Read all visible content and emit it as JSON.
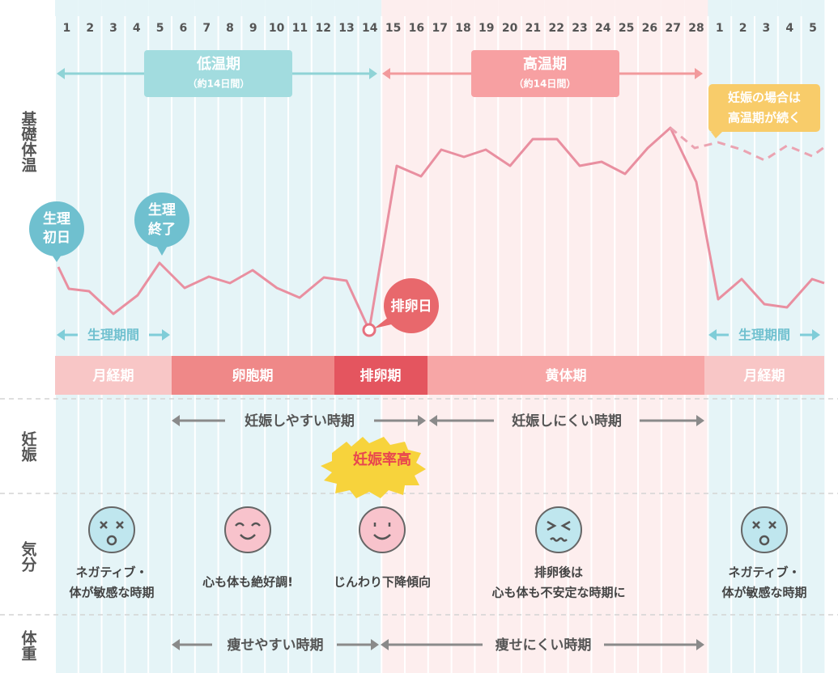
{
  "days": [
    "1",
    "2",
    "3",
    "4",
    "5",
    "6",
    "7",
    "8",
    "9",
    "10",
    "11",
    "12",
    "13",
    "14",
    "15",
    "16",
    "17",
    "18",
    "19",
    "20",
    "21",
    "22",
    "23",
    "24",
    "25",
    "26",
    "27",
    "28",
    "1",
    "2",
    "3",
    "4",
    "5"
  ],
  "row_labels": {
    "temperature": "基礎体温",
    "pregnancy": "妊娠",
    "mood": "気分",
    "weight": "体重"
  },
  "periods": {
    "low": {
      "title": "低温期",
      "sub": "（約14日間）"
    },
    "high": {
      "title": "高温期",
      "sub": "（約14日間）"
    }
  },
  "callouts": {
    "period_start": [
      "生理",
      "初日"
    ],
    "period_end": [
      "生理",
      "終了"
    ],
    "ovulation": "排卵日",
    "pregnant": [
      "妊娠の場合は",
      "高温期が続く"
    ]
  },
  "menstruation_span": [
    "生理期間",
    "生理期間"
  ],
  "phases": [
    "月経期",
    "卵胞期",
    "排卵期",
    "黄体期",
    "月経期"
  ],
  "pregnancy": {
    "easy": "妊娠しやすい時期",
    "hard": "妊娠しにくい時期",
    "peak": "妊娠率高"
  },
  "mood": [
    [
      "ネガティブ・",
      "体が敏感な時期"
    ],
    [
      "心も体も絶好調!"
    ],
    [
      "じんわり下降傾向"
    ],
    [
      "排卵後は",
      "心も体も不安定な時期に"
    ],
    [
      "ネガティブ・",
      "体が敏感な時期"
    ]
  ],
  "weight": {
    "easy": "痩せやすい時期",
    "hard": "痩せにくい時期"
  }
}
